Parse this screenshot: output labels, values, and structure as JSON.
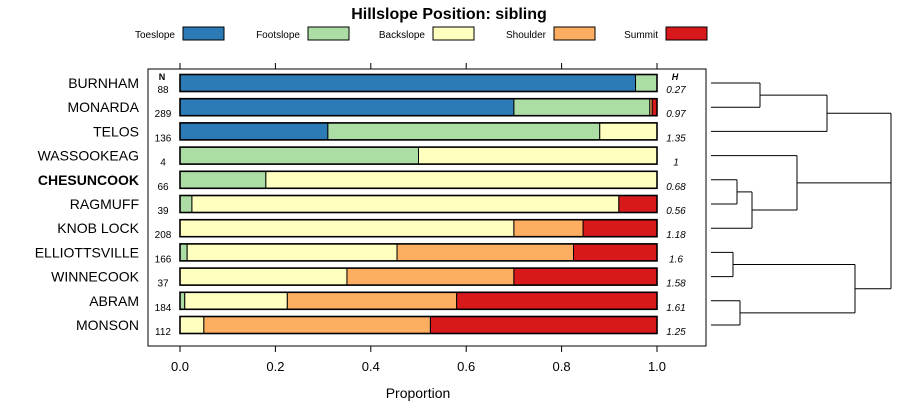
{
  "chart_data": {
    "type": "bar",
    "stacked": true,
    "orientation": "horizontal",
    "title": "Hillslope Position: sibling",
    "xlabel": "Proportion",
    "xlim": [
      0,
      1
    ],
    "x_ticks": [
      "0.0",
      "0.2",
      "0.4",
      "0.6",
      "0.8",
      "1.0"
    ],
    "x_tick_values": [
      0,
      0.2,
      0.4,
      0.6,
      0.8,
      1.0
    ],
    "legend_position": "top",
    "n_header": "N",
    "h_header": "H",
    "highlighted_category": "CHESUNCOOK",
    "series": [
      {
        "name": "Toeslope",
        "color": "#2c7bb6"
      },
      {
        "name": "Footslope",
        "color": "#abdda4"
      },
      {
        "name": "Backslope",
        "color": "#ffffbf"
      },
      {
        "name": "Shoulder",
        "color": "#fdae61"
      },
      {
        "name": "Summit",
        "color": "#d7191c"
      }
    ],
    "categories": [
      "BURNHAM",
      "MONARDA",
      "TELOS",
      "WASSOOKEAG",
      "CHESUNCOOK",
      "RAGMUFF",
      "KNOB LOCK",
      "ELLIOTTSVILLE",
      "WINNECOOK",
      "ABRAM",
      "MONSON"
    ],
    "n": [
      "88",
      "289",
      "136",
      "4",
      "66",
      "39",
      "208",
      "166",
      "37",
      "184",
      "112"
    ],
    "h": [
      "0.27",
      "0.97",
      "1.35",
      "1",
      "0.68",
      "0.56",
      "1.18",
      "1.6",
      "1.58",
      "1.61",
      "1.25"
    ],
    "values": [
      [
        0.955,
        0.045,
        0.0,
        0.0,
        0.0
      ],
      [
        0.7,
        0.285,
        0.0,
        0.005,
        0.01
      ],
      [
        0.31,
        0.57,
        0.12,
        0.0,
        0.0
      ],
      [
        0.0,
        0.5,
        0.5,
        0.0,
        0.0
      ],
      [
        0.0,
        0.18,
        0.82,
        0.0,
        0.0
      ],
      [
        0.0,
        0.025,
        0.895,
        0.0,
        0.08
      ],
      [
        0.0,
        0.0,
        0.7,
        0.145,
        0.155
      ],
      [
        0.0,
        0.015,
        0.44,
        0.37,
        0.175
      ],
      [
        0.0,
        0.0,
        0.35,
        0.35,
        0.3
      ],
      [
        0.0,
        0.01,
        0.215,
        0.355,
        0.42
      ],
      [
        0.0,
        0.0,
        0.05,
        0.475,
        0.475
      ]
    ]
  }
}
